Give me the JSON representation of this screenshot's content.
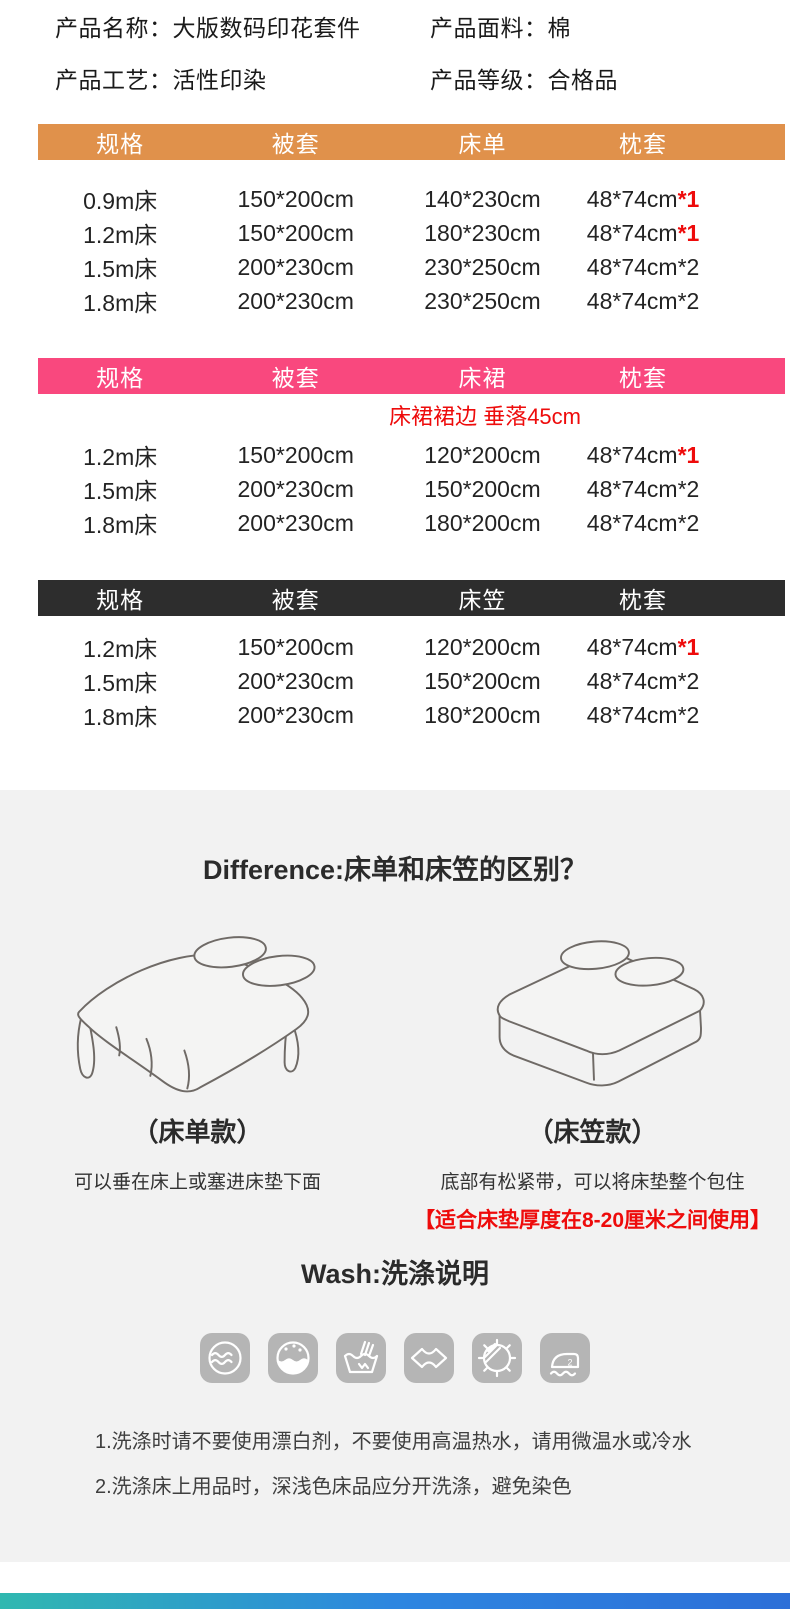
{
  "product_info": {
    "items": [
      {
        "text": "产品名称：大版数码印花套件"
      },
      {
        "text": "产品面料：棉"
      },
      {
        "text": "产品工艺：活性印染"
      },
      {
        "text": "产品等级：合格品"
      }
    ]
  },
  "tables": [
    {
      "name": "sheet-set-table",
      "header_bg": "#E0914B",
      "headers": [
        "规格",
        "被套",
        "床单",
        "枕套"
      ],
      "rows": [
        {
          "spec": "0.9m床",
          "duvet_cover": "150*200cm",
          "item": "140*230cm",
          "pillowcase": "48*74cm",
          "pillow_qty": "*1",
          "qty_highlight": true
        },
        {
          "spec": "1.2m床",
          "duvet_cover": "150*200cm",
          "item": "180*230cm",
          "pillowcase": "48*74cm",
          "pillow_qty": "*1",
          "qty_highlight": true
        },
        {
          "spec": "1.5m床",
          "duvet_cover": "200*230cm",
          "item": "230*250cm",
          "pillowcase": "48*74cm",
          "pillow_qty": "*2",
          "qty_highlight": false
        },
        {
          "spec": "1.8m床",
          "duvet_cover": "200*230cm",
          "item": "230*250cm",
          "pillowcase": "48*74cm",
          "pillow_qty": "*2",
          "qty_highlight": false
        }
      ]
    },
    {
      "name": "bed-skirt-table",
      "header_bg": "#F9487E",
      "headers": [
        "规格",
        "被套",
        "床裙",
        "枕套"
      ],
      "note": "床裙裙边 垂落45cm",
      "rows": [
        {
          "spec": "1.2m床",
          "duvet_cover": "150*200cm",
          "item": "120*200cm",
          "pillowcase": "48*74cm",
          "pillow_qty": "*1",
          "qty_highlight": true
        },
        {
          "spec": "1.5m床",
          "duvet_cover": "200*230cm",
          "item": "150*200cm",
          "pillowcase": "48*74cm",
          "pillow_qty": "*2",
          "qty_highlight": false
        },
        {
          "spec": "1.8m床",
          "duvet_cover": "200*230cm",
          "item": "180*200cm",
          "pillowcase": "48*74cm",
          "pillow_qty": "*2",
          "qty_highlight": false
        }
      ]
    },
    {
      "name": "fitted-sheet-table",
      "header_bg": "#2D2D2D",
      "headers": [
        "规格",
        "被套",
        "床笠",
        "枕套"
      ],
      "rows": [
        {
          "spec": "1.2m床",
          "duvet_cover": "150*200cm",
          "item": "120*200cm",
          "pillowcase": "48*74cm",
          "pillow_qty": "*1",
          "qty_highlight": true
        },
        {
          "spec": "1.5m床",
          "duvet_cover": "200*230cm",
          "item": "150*200cm",
          "pillowcase": "48*74cm",
          "pillow_qty": "*2",
          "qty_highlight": false
        },
        {
          "spec": "1.8m床",
          "duvet_cover": "200*230cm",
          "item": "180*200cm",
          "pillowcase": "48*74cm",
          "pillow_qty": "*2",
          "qty_highlight": false
        }
      ]
    }
  ],
  "difference": {
    "title": "Difference:床单和床笠的区别？",
    "left": {
      "illustration": "bed-with-flat-sheet",
      "label": "（床单款）",
      "desc": "可以垂在床上或塞进床垫下面"
    },
    "right": {
      "illustration": "mattress-with-fitted-sheet",
      "label": "（床笠款）",
      "desc": "底部有松紧带，可以将床垫整个包住",
      "note": "【适合床垫厚度在8-20厘米之间使用】"
    }
  },
  "wash": {
    "title": "Wash:洗涤说明",
    "icons": [
      {
        "name": "machine-wash-icon"
      },
      {
        "name": "no-bleach-icon"
      },
      {
        "name": "hand-wash-icon"
      },
      {
        "name": "no-wring-icon"
      },
      {
        "name": "no-tumble-dry-icon"
      },
      {
        "name": "iron-medium-heat-icon"
      }
    ],
    "notes": [
      "1.洗涤时请不要使用漂白剂，不要使用高温热水，请用微温水或冷水",
      "2.洗涤床上用品时，深浅色床品应分开洗涤，避免染色"
    ]
  },
  "colors": {
    "table1_header": "#E0914B",
    "table2_header": "#F9487E",
    "table3_header": "#2D2D2D",
    "highlight_red": "#EE0B0B",
    "section_bg": "#F2F2F2",
    "icon_bg": "#B5B5B5",
    "footer_gradient_start": "#2FB8B0",
    "footer_gradient_mid": "#2E86E0",
    "footer_gradient_end": "#2C6FD8"
  }
}
